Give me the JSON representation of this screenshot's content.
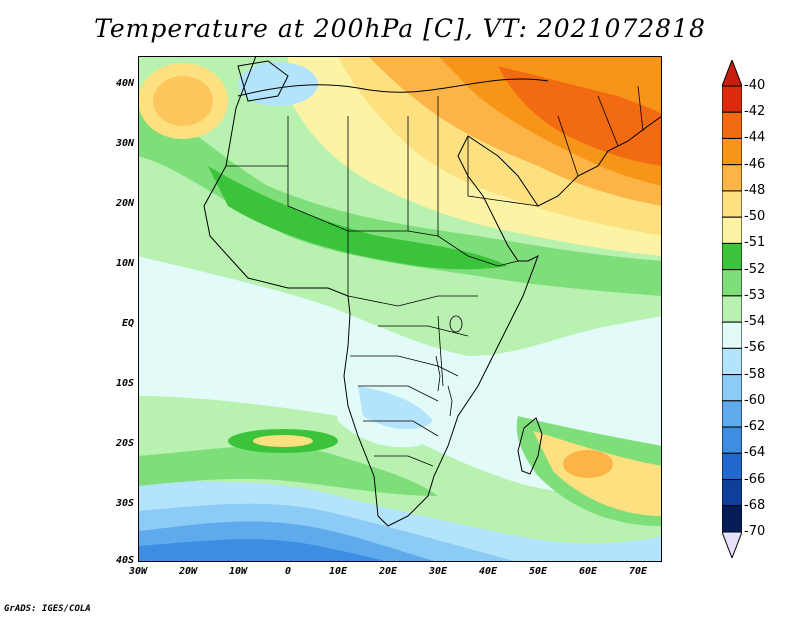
{
  "title": "Temperature at 200hPa [C], VT: 2021072818",
  "credit": "GrADS: IGES/COLA",
  "map": {
    "lat_labels": [
      "40N",
      "30N",
      "20N",
      "10N",
      "EQ",
      "10S",
      "20S",
      "30S",
      "40S"
    ],
    "lon_labels": [
      "30W",
      "20W",
      "10W",
      "0",
      "10E",
      "20E",
      "30E",
      "40E",
      "50E",
      "60E",
      "70E"
    ]
  },
  "colorbar": {
    "levels": [
      {
        "label": "-40",
        "color": "#f5bf73"
      },
      {
        "label": "-42",
        "color": "#dc2b0b"
      },
      {
        "label": "-44",
        "color": "#f26a11"
      },
      {
        "label": "-46",
        "color": "#f79518"
      },
      {
        "label": "-48",
        "color": "#fbb445"
      },
      {
        "label": "-50",
        "color": "#fde07f"
      },
      {
        "label": "-51",
        "color": "#fdf3a5"
      },
      {
        "label": "-52",
        "color": "#3bc43b"
      },
      {
        "label": "-53",
        "color": "#7ede7a"
      },
      {
        "label": "-54",
        "color": "#b8f1b0"
      },
      {
        "label": "-56",
        "color": "#e2fbf8"
      },
      {
        "label": "-58",
        "color": "#b3e4fb"
      },
      {
        "label": "-60",
        "color": "#8ccbf5"
      },
      {
        "label": "-62",
        "color": "#5eaaec"
      },
      {
        "label": "-64",
        "color": "#3d8ee2"
      },
      {
        "label": "-66",
        "color": "#2268cf"
      },
      {
        "label": "-68",
        "color": "#0f3f9a"
      },
      {
        "label": "-70",
        "color": "#081d58"
      }
    ],
    "top_arrow_color": "#c81e0e",
    "bottom_arrow_color": "#e8e0f8"
  }
}
